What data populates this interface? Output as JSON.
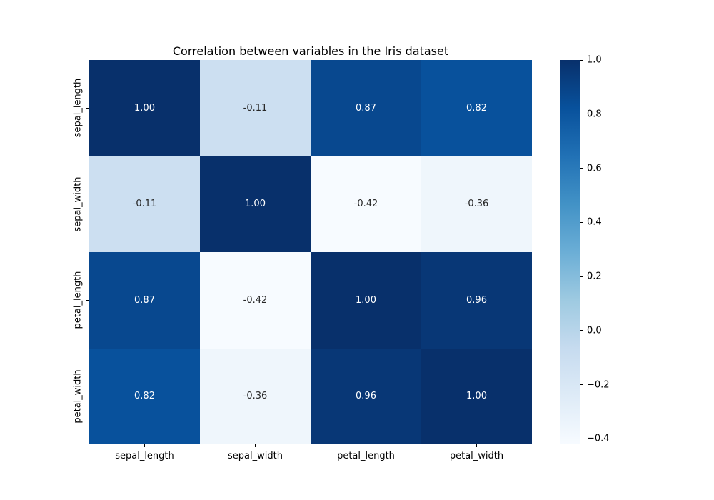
{
  "chart_data": {
    "type": "heatmap",
    "title": "Correlation between variables in the Iris dataset",
    "categories": [
      "sepal_length",
      "sepal_width",
      "petal_length",
      "petal_width"
    ],
    "x_tick_labels": [
      "sepal_length",
      "sepal_width",
      "petal_length",
      "petal_width"
    ],
    "y_tick_labels": [
      "sepal_length",
      "sepal_width",
      "petal_length",
      "petal_width"
    ],
    "matrix": [
      [
        1.0,
        -0.11,
        0.87,
        0.82
      ],
      [
        -0.11,
        1.0,
        -0.42,
        -0.36
      ],
      [
        0.87,
        -0.42,
        1.0,
        0.96
      ],
      [
        0.82,
        -0.36,
        0.96,
        1.0
      ]
    ],
    "cell_labels": [
      [
        "1.00",
        "-0.11",
        "0.87",
        "0.82"
      ],
      [
        "-0.11",
        "1.00",
        "-0.42",
        "-0.36"
      ],
      [
        "0.87",
        "-0.42",
        "1.00",
        "0.96"
      ],
      [
        "0.82",
        "-0.36",
        "0.96",
        "1.00"
      ]
    ],
    "cell_colors": [
      [
        "#08306b",
        "#ccdff1",
        "#08488f",
        "#08519c"
      ],
      [
        "#ccdff1",
        "#08306b",
        "#f7fbff",
        "#eff6fc"
      ],
      [
        "#08488f",
        "#f7fbff",
        "#08306b",
        "#083776"
      ],
      [
        "#08519c",
        "#eff6fc",
        "#083776",
        "#08306b"
      ]
    ],
    "cell_text_colors": [
      [
        "#ffffff",
        "#262626",
        "#ffffff",
        "#ffffff"
      ],
      [
        "#262626",
        "#ffffff",
        "#262626",
        "#262626"
      ],
      [
        "#ffffff",
        "#262626",
        "#ffffff",
        "#ffffff"
      ],
      [
        "#ffffff",
        "#262626",
        "#ffffff",
        "#ffffff"
      ]
    ],
    "colormap": "Blues",
    "colormap_anchors": [
      "#08306b",
      "#08519c",
      "#2171b5",
      "#4292c6",
      "#6baed6",
      "#9ecae1",
      "#c6dbef",
      "#deebf7",
      "#f7fbff"
    ],
    "colorbar": {
      "position": "right",
      "vmin": -0.42,
      "vmax": 1.0,
      "ticks": [
        {
          "label": "1.0",
          "value": 1.0
        },
        {
          "label": "0.8",
          "value": 0.8
        },
        {
          "label": "0.6",
          "value": 0.6
        },
        {
          "label": "0.4",
          "value": 0.4
        },
        {
          "label": "0.2",
          "value": 0.2
        },
        {
          "label": "0.0",
          "value": 0.0
        },
        {
          "label": "−0.2",
          "value": -0.2
        },
        {
          "label": "−0.4",
          "value": -0.4
        }
      ]
    },
    "grid": false,
    "background_color": "#ffffff"
  }
}
